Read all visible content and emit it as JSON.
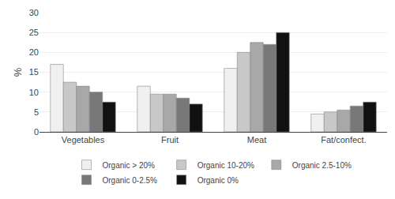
{
  "chart_data": {
    "type": "bar",
    "categories": [
      "Vegetables",
      "Fruit",
      "Meat",
      "Fat/confect."
    ],
    "series": [
      {
        "name": "Organic > 20%",
        "color": "#f0f0f0",
        "values": [
          17,
          11.5,
          16,
          4.5
        ]
      },
      {
        "name": "Organic 10-20%",
        "color": "#c8c8c8",
        "values": [
          12.5,
          9.5,
          20,
          5
        ]
      },
      {
        "name": "Organic 2.5-10%",
        "color": "#a8a8a8",
        "values": [
          11.5,
          9.5,
          22.5,
          5.5
        ]
      },
      {
        "name": "Organic 0-2.5%",
        "color": "#787878",
        "values": [
          10,
          8.5,
          22,
          6.5
        ]
      },
      {
        "name": "Organic 0%",
        "color": "#111111",
        "values": [
          7.5,
          7,
          25,
          7.5
        ]
      }
    ],
    "ylabel": "%",
    "ylim": [
      0,
      30
    ],
    "yticks": [
      0,
      5,
      10,
      15,
      20,
      25,
      30
    ],
    "grid": true,
    "legend": "bottom"
  }
}
